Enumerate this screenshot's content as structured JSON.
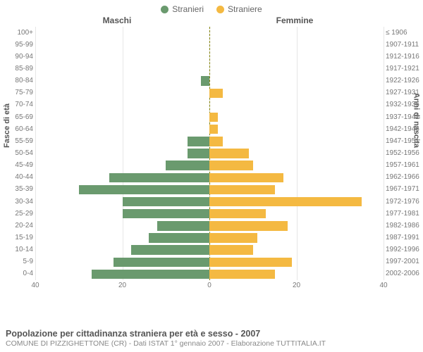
{
  "legend": {
    "male_label": "Stranieri",
    "female_label": "Straniere"
  },
  "headers": {
    "left": "Maschi",
    "right": "Femmine"
  },
  "axis_titles": {
    "left": "Fasce di età",
    "right": "Anni di nascita"
  },
  "colors": {
    "male": "#6a9a6e",
    "female": "#f4b942",
    "grid": "#e6e6e6",
    "centerline": "#808000",
    "text": "#666666",
    "background": "#ffffff"
  },
  "chart": {
    "type": "population-pyramid",
    "xmax": 40,
    "xticks": [
      40,
      20,
      0,
      20,
      40
    ],
    "age_groups": [
      {
        "label": "100+",
        "birth": "≤ 1906",
        "m": 0,
        "f": 0
      },
      {
        "label": "95-99",
        "birth": "1907-1911",
        "m": 0,
        "f": 0
      },
      {
        "label": "90-94",
        "birth": "1912-1916",
        "m": 0,
        "f": 0
      },
      {
        "label": "85-89",
        "birth": "1917-1921",
        "m": 0,
        "f": 0
      },
      {
        "label": "80-84",
        "birth": "1922-1926",
        "m": 2,
        "f": 0
      },
      {
        "label": "75-79",
        "birth": "1927-1931",
        "m": 0,
        "f": 3
      },
      {
        "label": "70-74",
        "birth": "1932-1936",
        "m": 0,
        "f": 0
      },
      {
        "label": "65-69",
        "birth": "1937-1941",
        "m": 0,
        "f": 2
      },
      {
        "label": "60-64",
        "birth": "1942-1946",
        "m": 0,
        "f": 2
      },
      {
        "label": "55-59",
        "birth": "1947-1951",
        "m": 5,
        "f": 3
      },
      {
        "label": "50-54",
        "birth": "1952-1956",
        "m": 5,
        "f": 9
      },
      {
        "label": "45-49",
        "birth": "1957-1961",
        "m": 10,
        "f": 10
      },
      {
        "label": "40-44",
        "birth": "1962-1966",
        "m": 23,
        "f": 17
      },
      {
        "label": "35-39",
        "birth": "1967-1971",
        "m": 30,
        "f": 15
      },
      {
        "label": "30-34",
        "birth": "1972-1976",
        "m": 20,
        "f": 35
      },
      {
        "label": "25-29",
        "birth": "1977-1981",
        "m": 20,
        "f": 13
      },
      {
        "label": "20-24",
        "birth": "1982-1986",
        "m": 12,
        "f": 18
      },
      {
        "label": "15-19",
        "birth": "1987-1991",
        "m": 14,
        "f": 11
      },
      {
        "label": "10-14",
        "birth": "1992-1996",
        "m": 18,
        "f": 10
      },
      {
        "label": "5-9",
        "birth": "1997-2001",
        "m": 22,
        "f": 19
      },
      {
        "label": "0-4",
        "birth": "2002-2006",
        "m": 27,
        "f": 15
      }
    ]
  },
  "footer": {
    "title": "Popolazione per cittadinanza straniera per età e sesso - 2007",
    "subtitle": "COMUNE DI PIZZIGHETTONE (CR) - Dati ISTAT 1° gennaio 2007 - Elaborazione TUTTITALIA.IT"
  }
}
